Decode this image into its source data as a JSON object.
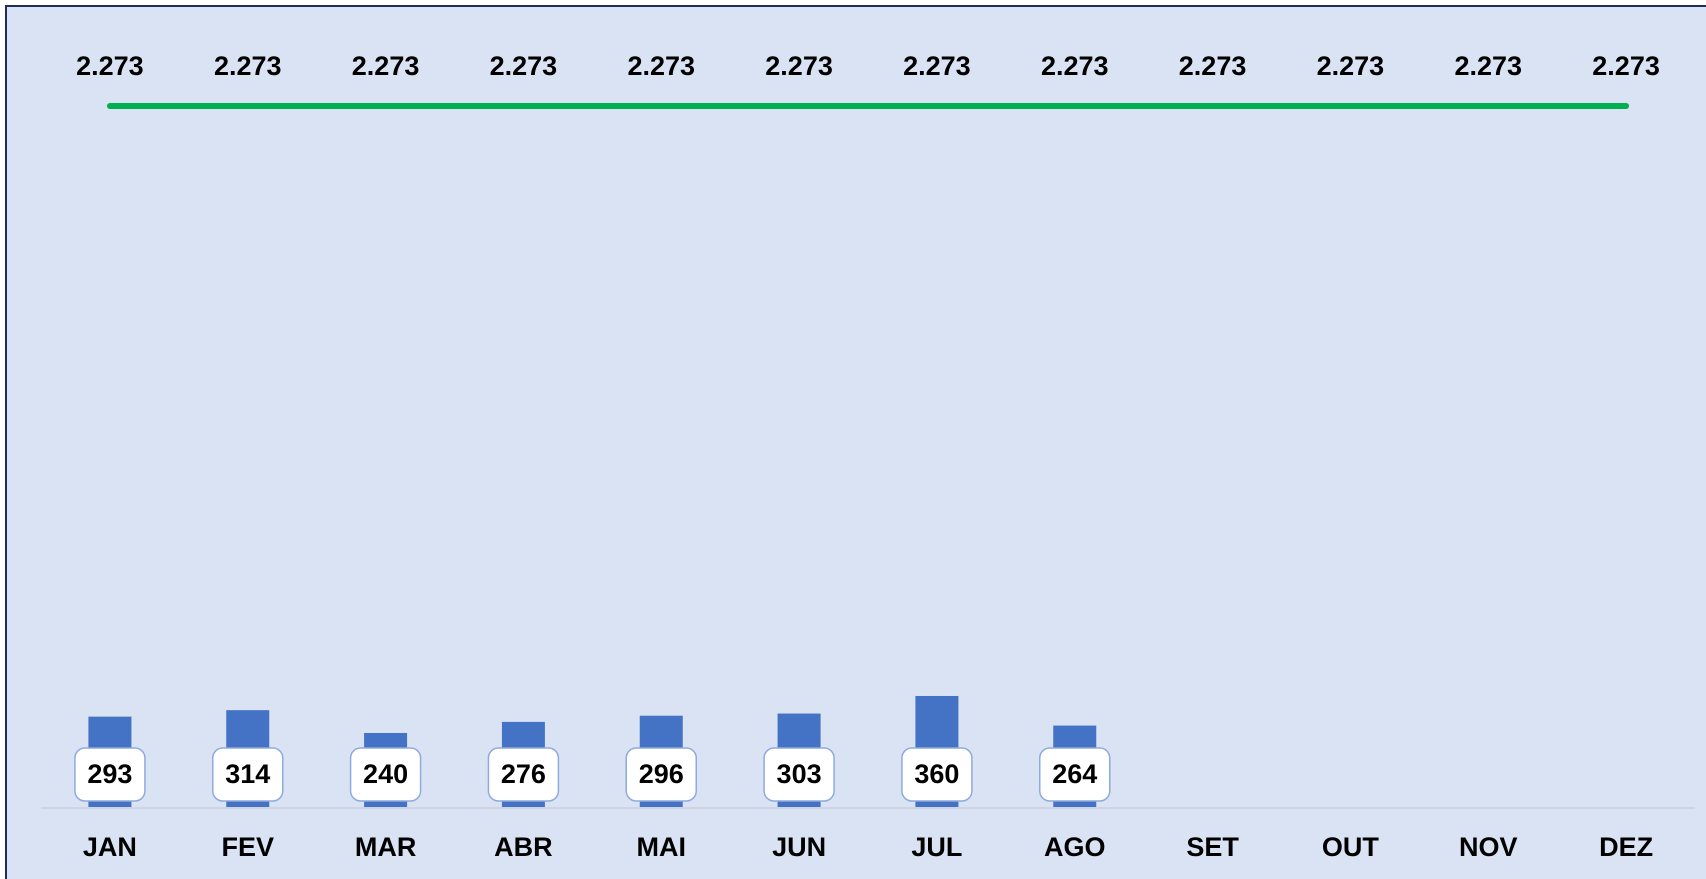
{
  "chart_data": {
    "type": "bar-line",
    "categories": [
      "JAN",
      "FEV",
      "MAR",
      "ABR",
      "MAI",
      "JUN",
      "JUL",
      "AGO",
      "SET",
      "OUT",
      "NOV",
      "DEZ"
    ],
    "series": [
      {
        "type": "bar",
        "color": "#4472c4",
        "values": [
          293,
          314,
          240,
          276,
          296,
          303,
          360,
          264,
          null,
          null,
          null,
          null
        ]
      },
      {
        "type": "line",
        "color": "#00b050",
        "values": [
          2273,
          2273,
          2273,
          2273,
          2273,
          2273,
          2273,
          2273,
          2273,
          2273,
          2273,
          2273
        ],
        "value_labels": [
          "2.273",
          "2.273",
          "2.273",
          "2.273",
          "2.273",
          "2.273",
          "2.273",
          "2.273",
          "2.273",
          "2.273",
          "2.273",
          "2.273"
        ]
      }
    ],
    "ylim": [
      0,
      2500
    ]
  }
}
